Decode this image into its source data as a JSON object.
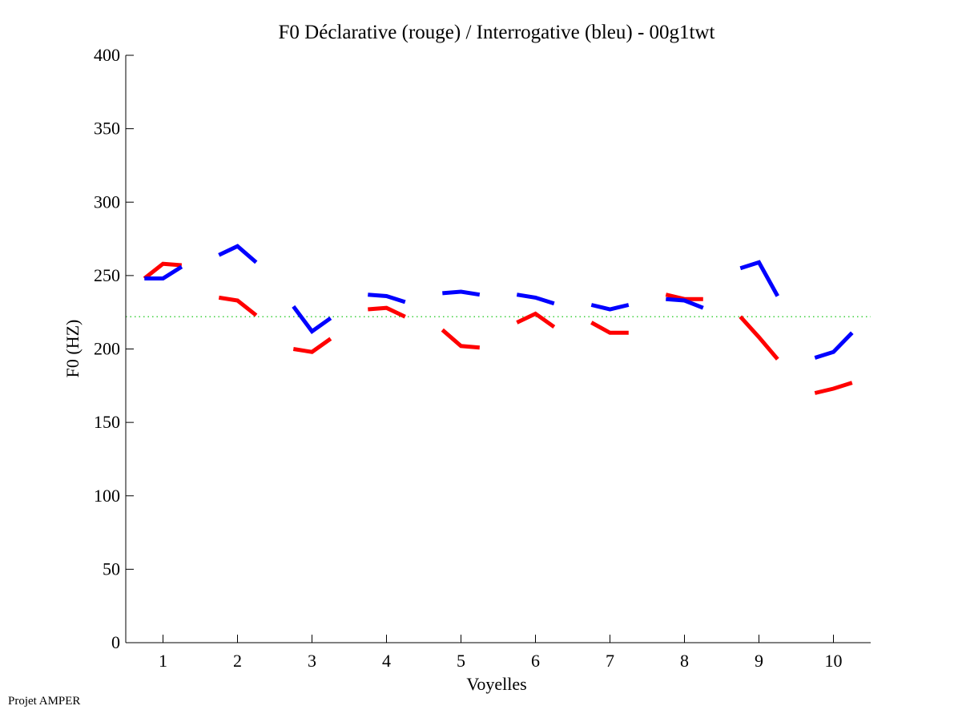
{
  "chart_data": {
    "type": "line",
    "title": "F0 Déclarative (rouge) / Interrogative (bleu) - 00g1twt",
    "xlabel": "Voyelles",
    "ylabel": "F0 (HZ)",
    "xlim": [
      0.5,
      10.5
    ],
    "ylim": [
      0,
      400
    ],
    "xticks": [
      "1",
      "2",
      "3",
      "4",
      "5",
      "6",
      "7",
      "8",
      "9",
      "10"
    ],
    "yticks": [
      "0",
      "50",
      "100",
      "150",
      "200",
      "250",
      "300",
      "350",
      "400"
    ],
    "grid": false,
    "reference_line": {
      "value": 222,
      "color": "#00c000",
      "style": "dotted"
    },
    "series": [
      {
        "name": "Déclarative (rouge)",
        "color": "#ff0000",
        "segments": [
          {
            "x": [
              0.75,
              1.0,
              1.25
            ],
            "y": [
              248,
              258,
              257
            ]
          },
          {
            "x": [
              1.75,
              2.0,
              2.25
            ],
            "y": [
              235,
              233,
              223
            ]
          },
          {
            "x": [
              2.75,
              3.0,
              3.25
            ],
            "y": [
              200,
              198,
              207
            ]
          },
          {
            "x": [
              3.75,
              4.0,
              4.25
            ],
            "y": [
              227,
              228,
              222
            ]
          },
          {
            "x": [
              4.75,
              5.0,
              5.25
            ],
            "y": [
              213,
              202,
              201
            ]
          },
          {
            "x": [
              5.75,
              6.0,
              6.25
            ],
            "y": [
              218,
              224,
              215
            ]
          },
          {
            "x": [
              6.75,
              7.0,
              7.25
            ],
            "y": [
              218,
              211,
              211
            ]
          },
          {
            "x": [
              7.75,
              8.0,
              8.25
            ],
            "y": [
              237,
              234,
              234
            ]
          },
          {
            "x": [
              8.75,
              9.0,
              9.25
            ],
            "y": [
              222,
              208,
              193
            ]
          },
          {
            "x": [
              9.75,
              10.0,
              10.25
            ],
            "y": [
              170,
              173,
              177
            ]
          }
        ]
      },
      {
        "name": "Interrogative (bleu)",
        "color": "#0000ff",
        "segments": [
          {
            "x": [
              0.75,
              1.0,
              1.25
            ],
            "y": [
              248,
              248,
              256
            ]
          },
          {
            "x": [
              1.75,
              2.0,
              2.25
            ],
            "y": [
              264,
              270,
              259
            ]
          },
          {
            "x": [
              2.75,
              3.0,
              3.25
            ],
            "y": [
              229,
              212,
              221
            ]
          },
          {
            "x": [
              3.75,
              4.0,
              4.25
            ],
            "y": [
              237,
              236,
              232
            ]
          },
          {
            "x": [
              4.75,
              5.0,
              5.25
            ],
            "y": [
              238,
              239,
              237
            ]
          },
          {
            "x": [
              5.75,
              6.0,
              6.25
            ],
            "y": [
              237,
              235,
              231
            ]
          },
          {
            "x": [
              6.75,
              7.0,
              7.25
            ],
            "y": [
              230,
              227,
              230
            ]
          },
          {
            "x": [
              7.75,
              8.0,
              8.25
            ],
            "y": [
              234,
              233,
              228
            ]
          },
          {
            "x": [
              8.75,
              9.0,
              9.25
            ],
            "y": [
              255,
              259,
              236
            ]
          },
          {
            "x": [
              9.75,
              10.0,
              10.25
            ],
            "y": [
              194,
              198,
              211
            ]
          }
        ]
      }
    ]
  },
  "footer": "Projet AMPER"
}
